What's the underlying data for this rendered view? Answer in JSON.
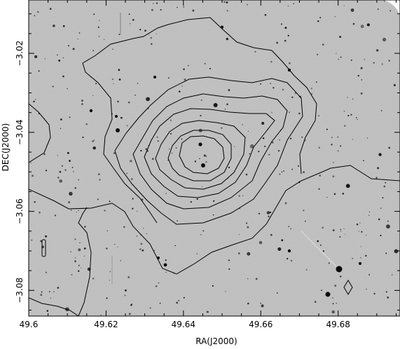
{
  "figure": {
    "xlabel": "RA(J2000)",
    "ylabel": "DEC(J2000)",
    "x_ticks": [
      "49.6",
      "49.62",
      "49.64",
      "49.66",
      "49.68"
    ],
    "y_ticks": [
      "−3.02",
      "−3.04",
      "−3.06",
      "−3.08"
    ],
    "x_range": [
      49.6,
      49.696
    ],
    "y_range": [
      -3.0065,
      -3.0865
    ],
    "colors": {
      "sky_background": "#bcbcbc",
      "contour": "#000000",
      "frame": "#000000",
      "page": "#ffffff"
    },
    "content": "greyscale optical sky image with black contour lines overlaid, peak near RA 49.645, DEC -3.045"
  }
}
